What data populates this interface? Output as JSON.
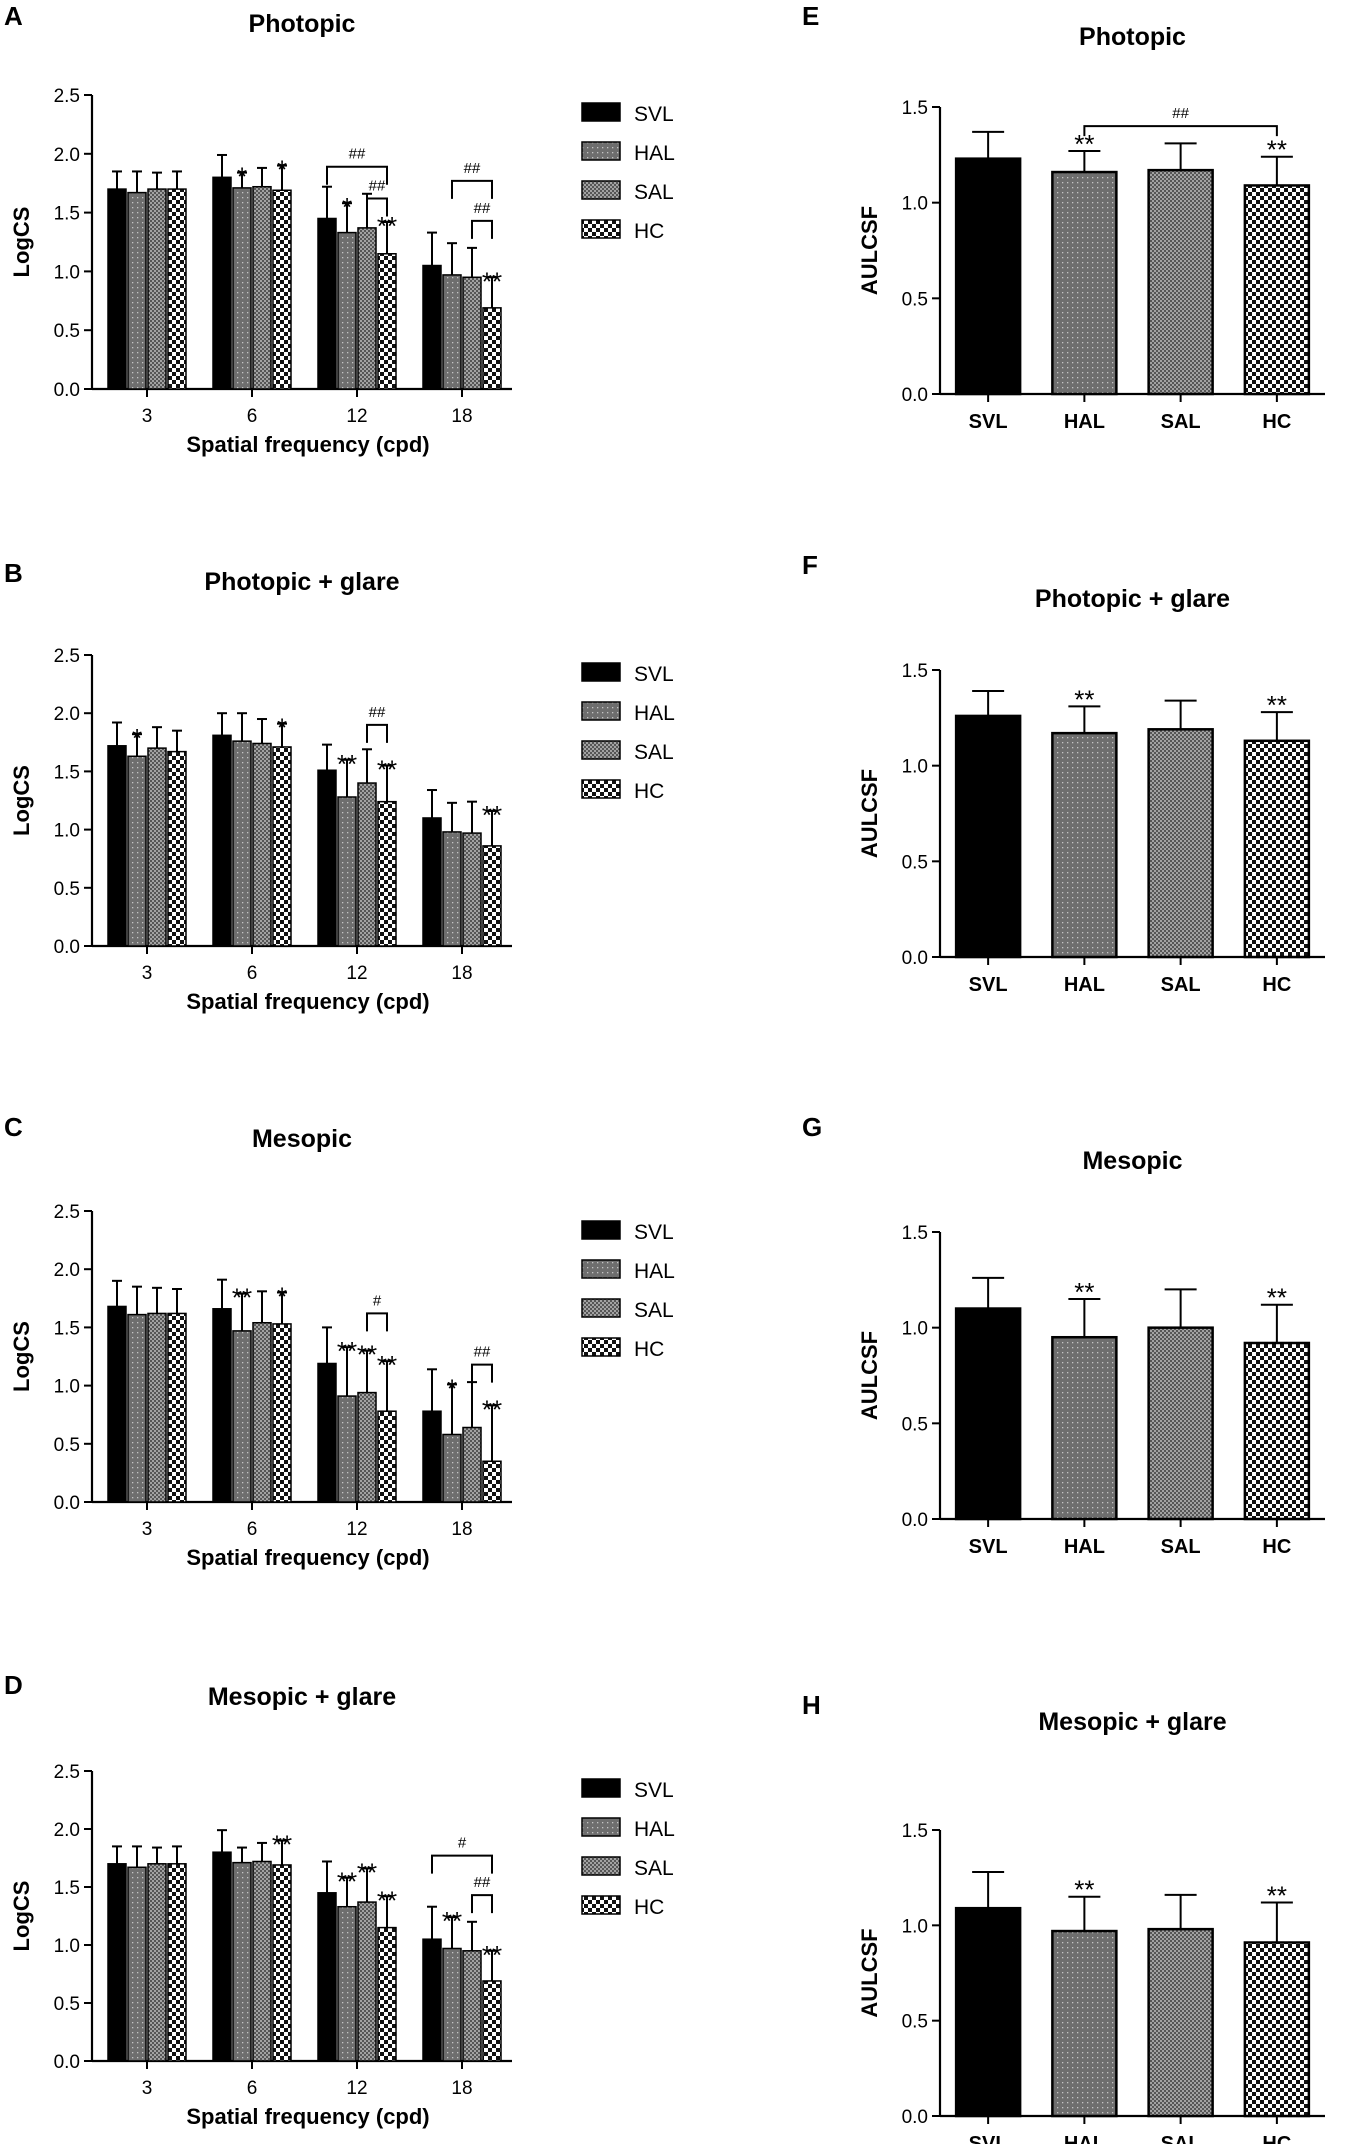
{
  "chart_data": [
    {
      "panel": "A",
      "type": "bar",
      "title": "Photopic",
      "xlabel": "Spatial frequency (cpd)",
      "ylabel": "LogCS",
      "ylim": [
        0,
        2.5
      ],
      "yticks": [
        "0.0",
        "0.5",
        "1.0",
        "1.5",
        "2.0",
        "2.5"
      ],
      "categories": [
        "3",
        "6",
        "12",
        "18"
      ],
      "series": [
        {
          "name": "SVL",
          "values": [
            1.7,
            1.8,
            1.45,
            1.05
          ],
          "err": [
            0.15,
            0.19,
            0.27,
            0.28
          ],
          "marks": [
            "",
            "",
            "",
            ""
          ]
        },
        {
          "name": "HAL",
          "values": [
            1.67,
            1.71,
            1.33,
            0.97
          ],
          "err": [
            0.18,
            0.13,
            0.25,
            0.27
          ],
          "marks": [
            "",
            "*",
            "*",
            ""
          ]
        },
        {
          "name": "SAL",
          "values": [
            1.7,
            1.72,
            1.37,
            0.95
          ],
          "err": [
            0.14,
            0.16,
            0.29,
            0.25
          ],
          "marks": [
            "",
            "",
            "",
            ""
          ]
        },
        {
          "name": "HC",
          "values": [
            1.7,
            1.69,
            1.15,
            0.69
          ],
          "err": [
            0.15,
            0.21,
            0.27,
            0.26
          ],
          "marks": [
            "",
            "*",
            "**",
            "**"
          ]
        }
      ],
      "brackets": [
        {
          "cat": 2,
          "from": 0,
          "to": 3,
          "level": 1.89,
          "label": "##"
        },
        {
          "cat": 2,
          "from": 2,
          "to": 3,
          "level": 1.62,
          "label": "##"
        },
        {
          "cat": 3,
          "from": 1,
          "to": 3,
          "level": 1.77,
          "label": "##"
        },
        {
          "cat": 3,
          "from": 2,
          "to": 3,
          "level": 1.43,
          "label": "##"
        }
      ]
    },
    {
      "panel": "B",
      "type": "bar",
      "title": "Photopic + glare",
      "xlabel": "Spatial frequency (cpd)",
      "ylabel": "LogCS",
      "ylim": [
        0,
        2.5
      ],
      "yticks": [
        "0.0",
        "0.5",
        "1.0",
        "1.5",
        "2.0",
        "2.5"
      ],
      "categories": [
        "3",
        "6",
        "12",
        "18"
      ],
      "series": [
        {
          "name": "SVL",
          "values": [
            1.72,
            1.81,
            1.51,
            1.1
          ],
          "err": [
            0.2,
            0.19,
            0.22,
            0.24
          ],
          "marks": [
            "",
            "",
            "",
            ""
          ]
        },
        {
          "name": "HAL",
          "values": [
            1.63,
            1.76,
            1.28,
            0.98
          ],
          "err": [
            0.19,
            0.24,
            0.32,
            0.25
          ],
          "marks": [
            "*",
            "",
            "**",
            ""
          ]
        },
        {
          "name": "SAL",
          "values": [
            1.7,
            1.74,
            1.4,
            0.97
          ],
          "err": [
            0.18,
            0.21,
            0.29,
            0.27
          ],
          "marks": [
            "",
            "",
            "",
            ""
          ]
        },
        {
          "name": "HC",
          "values": [
            1.67,
            1.71,
            1.24,
            0.86
          ],
          "err": [
            0.18,
            0.2,
            0.31,
            0.3
          ],
          "marks": [
            "",
            "*",
            "**",
            "**"
          ]
        }
      ],
      "brackets": [
        {
          "cat": 2,
          "from": 2,
          "to": 3,
          "level": 1.9,
          "label": "##"
        }
      ]
    },
    {
      "panel": "C",
      "type": "bar",
      "title": "Mesopic",
      "xlabel": "Spatial frequency (cpd)",
      "ylabel": "LogCS",
      "ylim": [
        0,
        2.5
      ],
      "yticks": [
        "0.0",
        "0.5",
        "1.0",
        "1.5",
        "2.0",
        "2.5"
      ],
      "categories": [
        "3",
        "6",
        "12",
        "18"
      ],
      "series": [
        {
          "name": "SVL",
          "values": [
            1.68,
            1.66,
            1.19,
            0.78
          ],
          "err": [
            0.22,
            0.25,
            0.31,
            0.36
          ],
          "marks": [
            "",
            "",
            "",
            ""
          ]
        },
        {
          "name": "HAL",
          "values": [
            1.61,
            1.47,
            0.91,
            0.58
          ],
          "err": [
            0.24,
            0.32,
            0.42,
            0.43
          ],
          "marks": [
            "",
            "**",
            "**",
            "*"
          ]
        },
        {
          "name": "SAL",
          "values": [
            1.62,
            1.54,
            0.94,
            0.64
          ],
          "err": [
            0.22,
            0.27,
            0.36,
            0.39
          ],
          "marks": [
            "",
            "",
            "**",
            ""
          ]
        },
        {
          "name": "HC",
          "values": [
            1.62,
            1.53,
            0.78,
            0.35
          ],
          "err": [
            0.21,
            0.27,
            0.43,
            0.48
          ],
          "marks": [
            "",
            "*",
            "**",
            "**"
          ]
        }
      ],
      "brackets": [
        {
          "cat": 2,
          "from": 2,
          "to": 3,
          "level": 1.62,
          "label": "#"
        },
        {
          "cat": 3,
          "from": 2,
          "to": 3,
          "level": 1.18,
          "label": "##"
        }
      ]
    },
    {
      "panel": "D",
      "type": "bar",
      "title": "Mesopic + glare",
      "xlabel": "Spatial frequency (cpd)",
      "ylabel": "LogCS",
      "ylim": [
        0,
        2.5
      ],
      "yticks": [
        "0.0",
        "0.5",
        "1.0",
        "1.5",
        "2.0",
        "2.5"
      ],
      "categories": [
        "3",
        "6",
        "12",
        "18"
      ],
      "series": [
        {
          "name": "SVL",
          "values": [
            1.7,
            1.8,
            1.45,
            1.05
          ],
          "err": [
            0.15,
            0.19,
            0.27,
            0.28
          ],
          "marks": [
            "",
            "",
            "",
            ""
          ]
        },
        {
          "name": "HAL",
          "values": [
            1.67,
            1.71,
            1.33,
            0.97
          ],
          "err": [
            0.18,
            0.13,
            0.25,
            0.27
          ],
          "marks": [
            "",
            "",
            "**",
            "**"
          ]
        },
        {
          "name": "SAL",
          "values": [
            1.7,
            1.72,
            1.37,
            0.95
          ],
          "err": [
            0.14,
            0.16,
            0.29,
            0.25
          ],
          "marks": [
            "",
            "",
            "**",
            ""
          ]
        },
        {
          "name": "HC",
          "values": [
            1.7,
            1.69,
            1.15,
            0.69
          ],
          "err": [
            0.15,
            0.21,
            0.27,
            0.26
          ],
          "marks": [
            "",
            "**",
            "**",
            "**"
          ]
        }
      ],
      "brackets": [
        {
          "cat": 3,
          "from": 0,
          "to": 3,
          "level": 1.77,
          "label": "#"
        },
        {
          "cat": 3,
          "from": 2,
          "to": 3,
          "level": 1.43,
          "label": "##"
        }
      ]
    },
    {
      "panel": "E",
      "type": "bar",
      "title": "Photopic",
      "xlabel": "",
      "ylabel": "AULCSF",
      "ylim": [
        0,
        1.5
      ],
      "yticks": [
        "0.0",
        "0.5",
        "1.0",
        "1.5"
      ],
      "categories": [
        "SVL",
        "HAL",
        "SAL",
        "HC"
      ],
      "values": [
        1.23,
        1.16,
        1.17,
        1.09
      ],
      "err": [
        0.14,
        0.11,
        0.14,
        0.15
      ],
      "marks": [
        "",
        "**",
        "",
        "**"
      ],
      "brackets": [
        {
          "from": 1,
          "to": 3,
          "level": 1.4,
          "label": "##"
        }
      ]
    },
    {
      "panel": "F",
      "type": "bar",
      "title": "Photopic + glare",
      "xlabel": "",
      "ylabel": "AULCSF",
      "ylim": [
        0,
        1.5
      ],
      "yticks": [
        "0.0",
        "0.5",
        "1.0",
        "1.5"
      ],
      "categories": [
        "SVL",
        "HAL",
        "SAL",
        "HC"
      ],
      "values": [
        1.26,
        1.17,
        1.19,
        1.13
      ],
      "err": [
        0.13,
        0.14,
        0.15,
        0.15
      ],
      "marks": [
        "",
        "**",
        "",
        "**"
      ],
      "brackets": []
    },
    {
      "panel": "G",
      "type": "bar",
      "title": "Mesopic",
      "xlabel": "",
      "ylabel": "AULCSF",
      "ylim": [
        0,
        1.5
      ],
      "yticks": [
        "0.0",
        "0.5",
        "1.0",
        "1.5"
      ],
      "categories": [
        "SVL",
        "HAL",
        "SAL",
        "HC"
      ],
      "values": [
        1.1,
        0.95,
        1.0,
        0.92
      ],
      "err": [
        0.16,
        0.2,
        0.2,
        0.2
      ],
      "marks": [
        "",
        "**",
        "",
        "**"
      ],
      "brackets": []
    },
    {
      "panel": "H",
      "type": "bar",
      "title": "Mesopic + glare",
      "xlabel": "",
      "ylabel": "AULCSF",
      "ylim": [
        0,
        1.5
      ],
      "yticks": [
        "0.0",
        "0.5",
        "1.0",
        "1.5"
      ],
      "categories": [
        "SVL",
        "HAL",
        "SAL",
        "HC"
      ],
      "values": [
        1.09,
        0.97,
        0.98,
        0.91
      ],
      "err": [
        0.19,
        0.18,
        0.18,
        0.21
      ],
      "marks": [
        "",
        "**",
        "",
        "**"
      ],
      "brackets": []
    }
  ],
  "legend": [
    "SVL",
    "HAL",
    "SAL",
    "HC"
  ],
  "colors": {
    "svl": "#000000",
    "hal": "#6e6e6e",
    "sal": "#565656",
    "hc": "#ffffff",
    "dot": "#c4c4c4"
  }
}
